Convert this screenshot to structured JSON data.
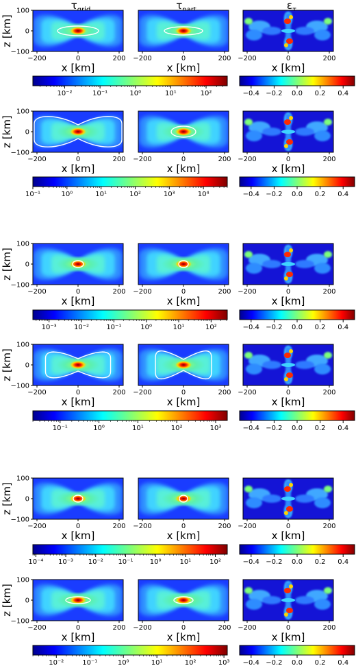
{
  "column_titles": [
    {
      "base": "τ",
      "sub": "grid"
    },
    {
      "base": "τ",
      "sub": "part"
    },
    {
      "base": "ε",
      "sub": "τ"
    }
  ],
  "axes": {
    "xlabel": "x [km]",
    "ylabel": "z [km]",
    "x_ticks": [
      -200,
      0,
      200
    ],
    "y_ticks": [
      -100,
      0,
      100
    ],
    "xlim": [
      -220,
      220
    ],
    "ylim": [
      -100,
      100
    ]
  },
  "error_colorbar": {
    "ticks": [
      -0.4,
      -0.2,
      0.0,
      0.2,
      0.4
    ],
    "tick_labels": [
      "−0.4",
      "−0.2",
      "0.0",
      "0.2",
      "0.4"
    ],
    "range": [
      -0.5,
      0.5
    ]
  },
  "tau_colorbars": [
    {
      "tick_labels": [
        "10⁻²",
        "10⁻¹",
        "10⁰",
        "10¹",
        "10²"
      ],
      "exponents": [
        -2,
        -1,
        0,
        1,
        2
      ],
      "log_range": [
        -2.9,
        2.6
      ]
    },
    {
      "tick_labels": [
        "10⁻¹",
        "10⁰",
        "10¹",
        "10²",
        "10³",
        "10⁴"
      ],
      "exponents": [
        -1,
        0,
        1,
        2,
        3,
        4
      ],
      "log_range": [
        -1.0,
        4.7
      ]
    },
    {
      "tick_labels": [
        "10⁻³",
        "10⁻²",
        "10⁻¹",
        "10⁰",
        "10¹",
        "10²"
      ],
      "exponents": [
        -3,
        -2,
        -1,
        0,
        1,
        2
      ],
      "log_range": [
        -3.5,
        2.5
      ]
    },
    {
      "tick_labels": [
        "10⁻¹",
        "10⁰",
        "10¹",
        "10²",
        "10³"
      ],
      "exponents": [
        -1,
        0,
        1,
        2,
        3
      ],
      "log_range": [
        -1.7,
        3.3
      ]
    },
    {
      "tick_labels": [
        "10⁻⁴",
        "10⁻³",
        "10⁻²",
        "10⁻¹",
        "10⁰",
        "10¹",
        "10²"
      ],
      "exponents": [
        -4,
        -3,
        -2,
        -1,
        0,
        1,
        2
      ],
      "log_range": [
        -4.1,
        2.4
      ]
    },
    {
      "tick_labels": [
        "10⁻²",
        "10⁻¹",
        "10⁰",
        "10¹",
        "10²",
        "10³"
      ],
      "exponents": [
        -2,
        -1,
        0,
        1,
        2,
        3
      ],
      "log_range": [
        -2.7,
        3.1
      ]
    }
  ],
  "chart_data": {
    "type": "heatmap",
    "layout": "6 rows × 3 columns of x–z maps; row pairs share tau and error colorbars",
    "columns": [
      "τ_grid",
      "τ_part",
      "ε_τ"
    ],
    "scale": "log for τ, linear for ε_τ",
    "colormap": "jet",
    "xlabel": "x [km]",
    "ylabel": "z [km]",
    "xlim": [
      -220,
      220
    ],
    "ylim": [
      -100,
      100
    ],
    "rows": [
      {
        "panel_row": 1,
        "tau_colorbar": 1,
        "white_contour": "τ = 1",
        "field": "bowtie, peak at origin"
      },
      {
        "panel_row": 2,
        "tau_colorbar": 2,
        "white_contour": "τ = 1",
        "field": "bowtie, peak at origin"
      },
      {
        "panel_row": 3,
        "tau_colorbar": 3,
        "white_contour": "τ = 1",
        "field": "bowtie, peak at origin"
      },
      {
        "panel_row": 4,
        "tau_colorbar": 4,
        "white_contour": "τ = 1",
        "field": "bowtie, peak at origin"
      },
      {
        "panel_row": 5,
        "tau_colorbar": 5,
        "white_contour": "τ = 1",
        "field": "bowtie, peak at origin"
      },
      {
        "panel_row": 6,
        "tau_colorbar": 6,
        "white_contour": "τ = 1",
        "field": "bowtie, peak at origin"
      }
    ]
  }
}
